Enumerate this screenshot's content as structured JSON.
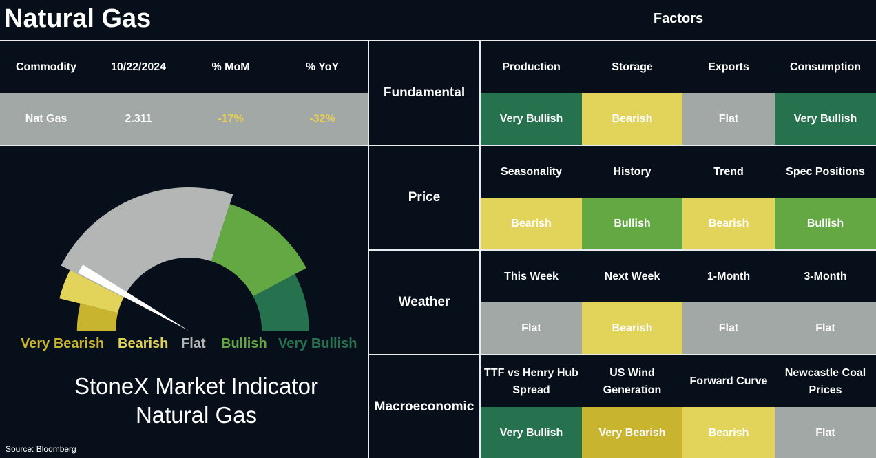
{
  "header": {
    "title": "Natural Gas",
    "factors_title": "Factors"
  },
  "commodity_table": {
    "headers": [
      "Commodity",
      "10/22/2024",
      "% MoM",
      "% YoY"
    ],
    "row": {
      "name": "Nat Gas",
      "price": "2.311",
      "mom": "-17%",
      "yoy": "-32%"
    }
  },
  "gauge": {
    "level": 0.165,
    "segments": [
      {
        "label": "Very Bearish",
        "color": "#c8b42e"
      },
      {
        "label": "Bearish",
        "color": "#e2d45a"
      },
      {
        "label": "Flat",
        "color": "#b4b6b6"
      },
      {
        "label": "Bullish",
        "color": "#64a844"
      },
      {
        "label": "Very Bullish",
        "color": "#26724e"
      }
    ]
  },
  "indicator": {
    "line1": "StoneX Market Indicator",
    "line2": "Natural Gas"
  },
  "source": "Source: Bloomberg",
  "colors": {
    "very_bullish": "#26724e",
    "bullish": "#64a844",
    "bearish": "#e2d45a",
    "very_bearish": "#c8b42e",
    "flat": "#a2a8a6",
    "negative_text": "#e6cf53"
  },
  "categories": [
    {
      "name": "Fundamental",
      "factors": [
        {
          "label": "Production",
          "value": "Very Bullish"
        },
        {
          "label": "Storage",
          "value": "Bearish"
        },
        {
          "label": "Exports",
          "value": "Flat"
        },
        {
          "label": "Consumption",
          "value": "Very Bullish"
        }
      ]
    },
    {
      "name": "Price",
      "factors": [
        {
          "label": "Seasonality",
          "value": "Bearish"
        },
        {
          "label": "History",
          "value": "Bullish"
        },
        {
          "label": "Trend",
          "value": "Bearish"
        },
        {
          "label": "Spec Positions",
          "value": "Bullish"
        }
      ]
    },
    {
      "name": "Weather",
      "factors": [
        {
          "label": "This Week",
          "value": "Flat"
        },
        {
          "label": "Next Week",
          "value": "Bearish"
        },
        {
          "label": "1-Month",
          "value": "Flat"
        },
        {
          "label": "3-Month",
          "value": "Flat"
        }
      ]
    },
    {
      "name": "Macroeconomic",
      "factors": [
        {
          "label": "TTF vs Henry Hub Spread",
          "value": "Very Bullish"
        },
        {
          "label": "US Wind Generation",
          "value": "Very Bearish"
        },
        {
          "label": "Forward Curve",
          "value": "Bearish"
        },
        {
          "label": "Newcastle Coal Prices",
          "value": "Flat"
        }
      ]
    }
  ]
}
